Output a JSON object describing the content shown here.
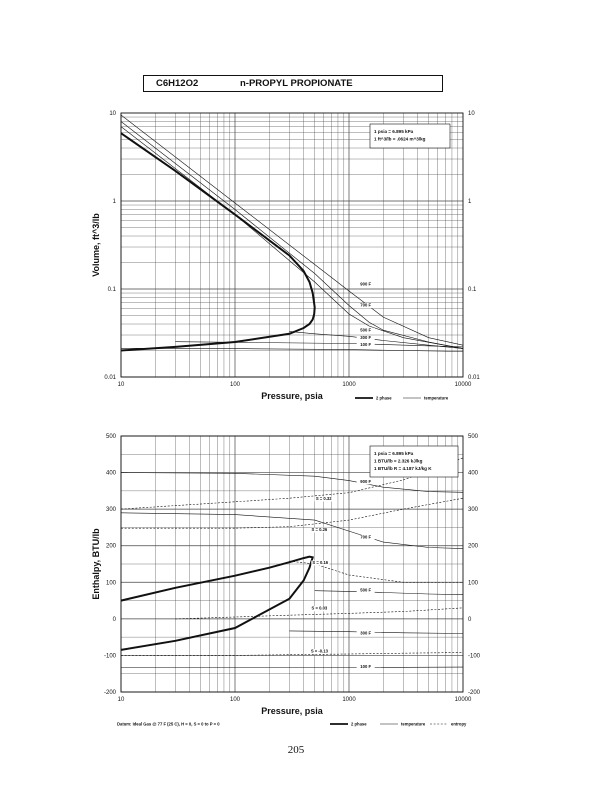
{
  "header": {
    "formula": "C6H12O2",
    "compound": "n-PROPYL PROPIONATE"
  },
  "page_number": "205",
  "chart_data": [
    {
      "type": "line",
      "xscale": "log",
      "yscale": "log",
      "xlabel": "Pressure, psia",
      "ylabel": "Volume, ft^3/lb",
      "xlim": [
        10,
        10000
      ],
      "ylim": [
        0.01,
        10
      ],
      "x_ticks": [
        "10",
        "100",
        "1000",
        "10000"
      ],
      "y_ticks": [
        "10",
        "1",
        "0.1",
        "0.01"
      ],
      "conversions": [
        "1 psia = 6.895 kPa",
        "1 ft^3/lb = .0624 m^3/kg"
      ],
      "legend": [
        "2 phase",
        "temperature"
      ],
      "series": [
        {
          "name": "2 phase",
          "style": "phase",
          "x": [
            10,
            30,
            100,
            300,
            400,
            450,
            480,
            500,
            495,
            480,
            450,
            400,
            300,
            100,
            30,
            10
          ],
          "y": [
            5.9,
            2.2,
            0.7,
            0.24,
            0.16,
            0.12,
            0.09,
            0.062,
            0.052,
            0.045,
            0.04,
            0.036,
            0.031,
            0.025,
            0.022,
            0.02
          ]
        },
        {
          "name": "900 F",
          "style": "temp",
          "x": [
            10,
            100,
            500,
            1000,
            2000,
            5000,
            10000
          ],
          "y": [
            9.5,
            0.95,
            0.19,
            0.095,
            0.048,
            0.028,
            0.023
          ]
        },
        {
          "name": "700 F",
          "style": "temp",
          "x": [
            10,
            100,
            500,
            1000,
            1500,
            2000,
            5000,
            10000
          ],
          "y": [
            8.0,
            0.8,
            0.15,
            0.065,
            0.042,
            0.034,
            0.025,
            0.021
          ]
        },
        {
          "name": "",
          "style": "temp",
          "x": [
            10,
            100,
            500,
            1000,
            1500,
            3000,
            10000
          ],
          "y": [
            7.0,
            0.7,
            0.12,
            0.052,
            0.038,
            0.028,
            0.021
          ]
        },
        {
          "name": "500 F",
          "style": "temp",
          "x": [
            300,
            500,
            1000,
            2000,
            5000,
            10000
          ],
          "y": [
            0.033,
            0.031,
            0.029,
            0.026,
            0.023,
            0.021
          ]
        },
        {
          "name": "300 F",
          "style": "temp",
          "x": [
            30,
            100,
            1000,
            10000
          ],
          "y": [
            0.0252,
            0.0248,
            0.024,
            0.022
          ]
        },
        {
          "name": "100 F",
          "style": "temp",
          "x": [
            10,
            100,
            1000,
            10000
          ],
          "y": [
            0.0212,
            0.021,
            0.0205,
            0.0195
          ]
        }
      ],
      "curve_labels": [
        {
          "text": "900 F",
          "x": 1400,
          "y": 0.11
        },
        {
          "text": "700 F",
          "x": 1400,
          "y": 0.063
        },
        {
          "text": "500 F",
          "x": 1400,
          "y": 0.033
        },
        {
          "text": "300 F",
          "x": 1400,
          "y": 0.027
        },
        {
          "text": "100 F",
          "x": 1400,
          "y": 0.0225
        }
      ]
    },
    {
      "type": "line",
      "xscale": "log",
      "xlabel": "Pressure, psia",
      "ylabel": "Enthalpy, BTU/lb",
      "xlim": [
        10,
        10000
      ],
      "ylim": [
        -200,
        500
      ],
      "x_ticks": [
        "10",
        "100",
        "1000",
        "10000"
      ],
      "y_ticks": [
        "500",
        "400",
        "300",
        "200",
        "100",
        "0",
        "-100",
        "-200"
      ],
      "conversions": [
        "1 psia = 6.895 kPa",
        "1 BTU/lb = 2.326 kJ/kg",
        "1 BTU/lb R = 4.187 kJ/kg K"
      ],
      "legend": [
        "2 phase",
        "temperature",
        "entropy"
      ],
      "footnote": "Datum: Ideal Gas @ 77 F (25 C), H = 0, S = 0 to P = 0",
      "series": [
        {
          "name": "2 phase",
          "style": "phase",
          "x": [
            10,
            30,
            100,
            200,
            300,
            400,
            450,
            480,
            450,
            400,
            300,
            100,
            30,
            10
          ],
          "y": [
            50,
            85,
            118,
            140,
            155,
            166,
            170,
            168,
            140,
            105,
            55,
            -25,
            -60,
            -85
          ]
        },
        {
          "name": "900 F",
          "style": "temp",
          "x": [
            10,
            100,
            500,
            1000,
            2000,
            5000,
            10000
          ],
          "y": [
            400,
            398,
            390,
            378,
            360,
            348,
            346
          ]
        },
        {
          "name": "700 F",
          "style": "temp",
          "x": [
            10,
            100,
            500,
            1000,
            2000,
            5000,
            10000
          ],
          "y": [
            290,
            285,
            270,
            240,
            210,
            195,
            192
          ]
        },
        {
          "name": "500 F",
          "style": "temp",
          "x": [
            500,
            1000,
            2000,
            5000,
            10000
          ],
          "y": [
            77,
            75,
            72,
            68,
            66
          ]
        },
        {
          "name": "300 F",
          "style": "temp",
          "x": [
            300,
            1000,
            3000,
            10000
          ],
          "y": [
            -33,
            -35,
            -38,
            -40
          ]
        },
        {
          "name": "100 F",
          "style": "temp",
          "x": [
            10,
            100,
            1000,
            10000
          ],
          "y": [
            -133,
            -133,
            -133,
            -132
          ]
        },
        {
          "name": "S=0.32",
          "style": "entropy",
          "x": [
            10,
            100,
            300,
            1000,
            3000,
            10000
          ],
          "y": [
            300,
            320,
            330,
            345,
            380,
            440
          ]
        },
        {
          "name": "S=0.26",
          "style": "entropy",
          "x": [
            10,
            100,
            300,
            1000,
            3000,
            10000
          ],
          "y": [
            248,
            248,
            252,
            270,
            300,
            330
          ]
        },
        {
          "name": "S=0.16",
          "style": "entropy",
          "x": [
            300,
            500,
            1000,
            3000,
            10000
          ],
          "y": [
            158,
            150,
            120,
            100,
            100
          ]
        },
        {
          "name": "S=0.03",
          "style": "entropy",
          "x": [
            30,
            100,
            300,
            1000,
            3000,
            10000
          ],
          "y": [
            0,
            5,
            10,
            15,
            20,
            30
          ]
        },
        {
          "name": "S=-0.13",
          "style": "entropy",
          "x": [
            10,
            100,
            300,
            1000,
            3000,
            10000
          ],
          "y": [
            -100,
            -100,
            -98,
            -96,
            -94,
            -92
          ]
        }
      ],
      "curve_labels": [
        {
          "text": "900 F",
          "x": 1400,
          "y": 372
        },
        {
          "text": "S = 0.32",
          "x": 600,
          "y": 325
        },
        {
          "text": "S = 0.26",
          "x": 550,
          "y": 240
        },
        {
          "text": "700 F",
          "x": 1400,
          "y": 220
        },
        {
          "text": "S = 0.16",
          "x": 560,
          "y": 150
        },
        {
          "text": "500 F",
          "x": 1400,
          "y": 75
        },
        {
          "text": "S = 0.03",
          "x": 550,
          "y": 25
        },
        {
          "text": "300 F",
          "x": 1400,
          "y": -43
        },
        {
          "text": "S = -0.13",
          "x": 550,
          "y": -92
        },
        {
          "text": "100 F",
          "x": 1400,
          "y": -135
        }
      ]
    }
  ]
}
